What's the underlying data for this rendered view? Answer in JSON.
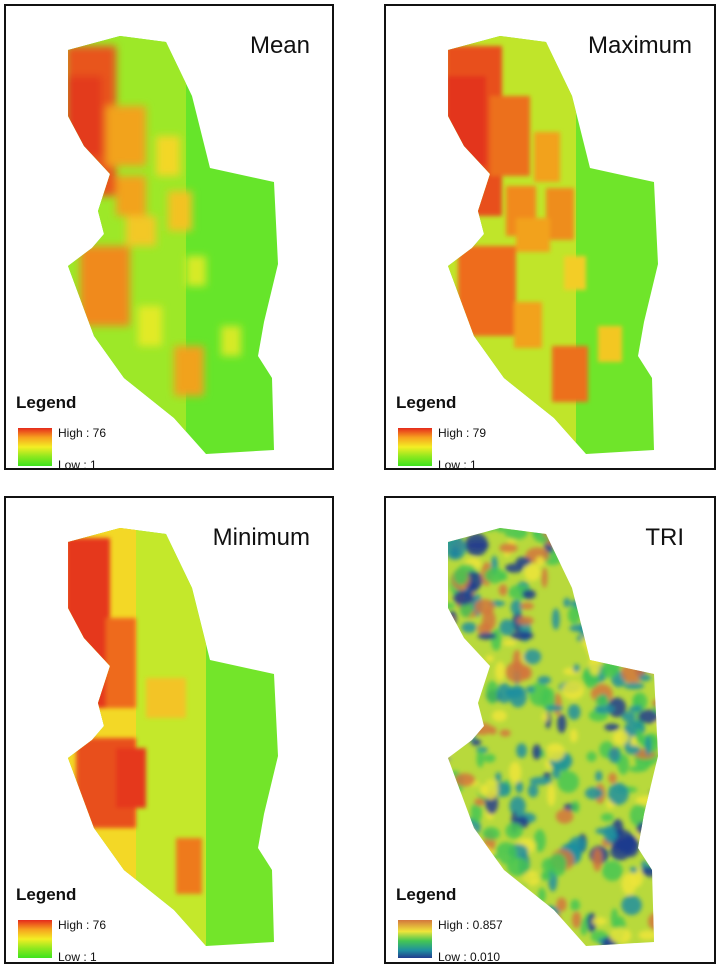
{
  "panels": {
    "mean": {
      "title": "Mean",
      "legend": {
        "title": "Legend",
        "high": "High : 76",
        "low": "Low : 1"
      }
    },
    "maximum": {
      "title": "Maximum",
      "legend": {
        "title": "Legend",
        "high": "High : 79",
        "low": "Low : 1"
      }
    },
    "minimum": {
      "title": "Minimum",
      "legend": {
        "title": "Legend",
        "high": "High : 76",
        "low": "Low : 1"
      }
    },
    "tri": {
      "title": "TRI",
      "legend": {
        "title": "Legend",
        "high": "High : 0.857",
        "low": "Low : 0.010"
      }
    }
  },
  "colors": {
    "elevation_ramp": [
      "#e52a1c",
      "#f7a21e",
      "#f3ee24",
      "#8ee81f",
      "#3ee31d"
    ],
    "tri_ramp": [
      "#d3763d",
      "#efe53a",
      "#44c653",
      "#1f8fa0",
      "#203c8e"
    ],
    "frame": "#111111"
  }
}
